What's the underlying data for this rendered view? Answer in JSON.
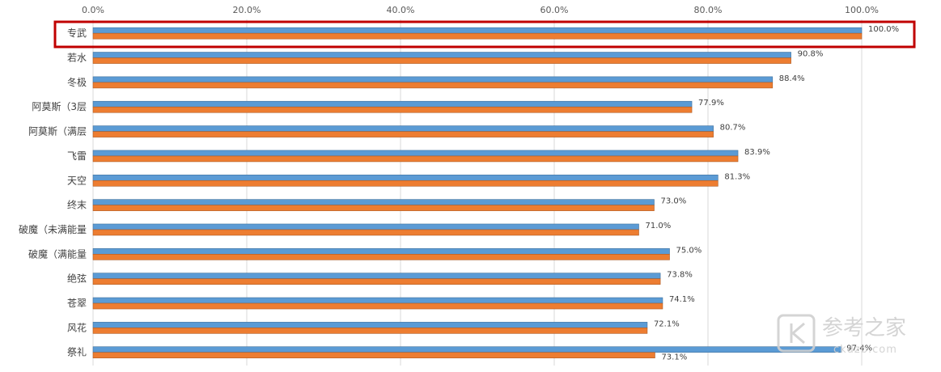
{
  "chart_data": {
    "type": "bar",
    "orientation": "horizontal",
    "xlim": [
      0,
      100
    ],
    "x_ticks": [
      "0.0%",
      "20.0%",
      "40.0%",
      "60.0%",
      "80.0%",
      "100.0%"
    ],
    "x_axis_position": "top",
    "grid": true,
    "categories": [
      "专武",
      "若水",
      "冬极",
      "阿莫斯（3层",
      "阿莫斯（满层",
      "飞雷",
      "天空",
      "终末",
      "破魔（未满能量",
      "破魔（满能量",
      "绝弦",
      "苍翠",
      "风花",
      "祭礼"
    ],
    "series": [
      {
        "color": "#5b9bd5",
        "values": [
          100.0,
          90.8,
          88.4,
          77.9,
          80.7,
          83.9,
          81.3,
          73.0,
          71.0,
          75.0,
          73.8,
          74.1,
          72.1,
          97.4
        ]
      },
      {
        "color": "#ed7d31",
        "values": [
          100.0,
          90.8,
          88.4,
          77.9,
          80.7,
          83.9,
          81.3,
          73.0,
          71.0,
          75.0,
          73.8,
          74.1,
          72.1,
          73.1
        ]
      }
    ],
    "data_labels": [
      "100.0%",
      "90.8%",
      "88.4%",
      "77.9%",
      "80.7%",
      "83.9%",
      "81.3%",
      "73.0%",
      "71.0%",
      "75.0%",
      "73.8%",
      "74.1%",
      "72.1%",
      "97.4%",
      "73.1%"
    ],
    "highlight_category": "专武",
    "highlight_color": "#c00000"
  },
  "watermark": {
    "text": "参考之家",
    "url": "ckdzb.com"
  }
}
